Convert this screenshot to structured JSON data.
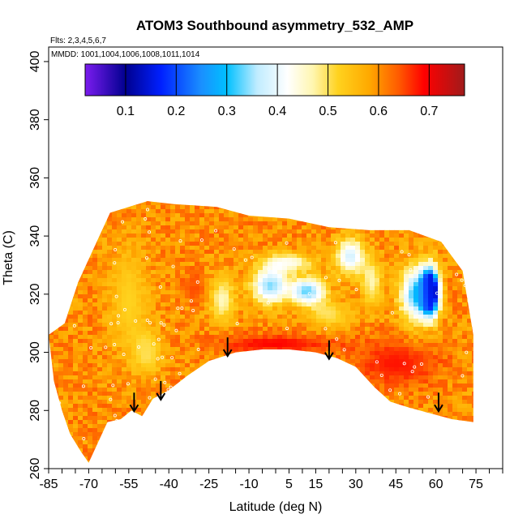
{
  "chart_data": {
    "type": "heatmap",
    "title": "ATOM3 Southbound asymmetry_532_AMP",
    "info_flights": "Flts: 2,3,4,5,6,7",
    "info_dates": "MMDD: 1001,1004,1006,1008,1011,1014",
    "xlabel": "Latitude (deg N)",
    "ylabel": "Theta (C)",
    "xlim": [
      -85,
      85
    ],
    "ylim": [
      260,
      405
    ],
    "x_ticks": [
      -85,
      -70,
      -55,
      -40,
      -25,
      -10,
      5,
      15,
      30,
      45,
      60,
      75
    ],
    "x_minor_step": 5,
    "y_ticks": [
      260,
      280,
      300,
      320,
      340,
      360,
      380,
      400
    ],
    "colorbar": {
      "range": [
        0.02,
        0.77
      ],
      "ticks": [
        0.1,
        0.2,
        0.3,
        0.4,
        0.5,
        0.6,
        0.7
      ],
      "stops": [
        {
          "v": 0.02,
          "color": "#7b1cef"
        },
        {
          "v": 0.1,
          "color": "#00008f"
        },
        {
          "v": 0.17,
          "color": "#0020ff"
        },
        {
          "v": 0.25,
          "color": "#1a90ff"
        },
        {
          "v": 0.3,
          "color": "#00c0ff"
        },
        {
          "v": 0.36,
          "color": "#c0ecff"
        },
        {
          "v": 0.42,
          "color": "#ffffff"
        },
        {
          "v": 0.47,
          "color": "#fff6b0"
        },
        {
          "v": 0.52,
          "color": "#ffd21e"
        },
        {
          "v": 0.58,
          "color": "#ffaa00"
        },
        {
          "v": 0.64,
          "color": "#ff5a00"
        },
        {
          "v": 0.69,
          "color": "#ff0000"
        },
        {
          "v": 0.77,
          "color": "#a01b1b"
        }
      ]
    },
    "tropopause_arrows": [
      {
        "lat": -53,
        "theta": 280
      },
      {
        "lat": -43,
        "theta": 284
      },
      {
        "lat": -18,
        "theta": 299
      },
      {
        "lat": 20,
        "theta": 298
      },
      {
        "lat": 61,
        "theta": 280
      }
    ],
    "boundary_top": [
      [
        -85,
        306
      ],
      [
        -79,
        310
      ],
      [
        -74,
        324
      ],
      [
        -68,
        336
      ],
      [
        -62,
        348
      ],
      [
        -55,
        350
      ],
      [
        -48,
        352
      ],
      [
        -38,
        351
      ],
      [
        -22,
        350
      ],
      [
        -10,
        347
      ],
      [
        5,
        346
      ],
      [
        20,
        343
      ],
      [
        35,
        342
      ],
      [
        50,
        342
      ],
      [
        62,
        338
      ],
      [
        70,
        328
      ],
      [
        74,
        306
      ]
    ],
    "boundary_bottom": [
      [
        -85,
        306
      ],
      [
        -83,
        290
      ],
      [
        -80,
        280
      ],
      [
        -77,
        272
      ],
      [
        -73,
        266
      ],
      [
        -70,
        262
      ],
      [
        -67,
        268
      ],
      [
        -63,
        276
      ],
      [
        -58,
        277
      ],
      [
        -54,
        280
      ],
      [
        -50,
        278
      ],
      [
        -46,
        284
      ],
      [
        -40,
        287
      ],
      [
        -33,
        292
      ],
      [
        -25,
        297
      ],
      [
        -15,
        300
      ],
      [
        -5,
        301
      ],
      [
        5,
        301
      ],
      [
        15,
        300
      ],
      [
        23,
        298
      ],
      [
        30,
        295
      ],
      [
        37,
        288
      ],
      [
        43,
        283
      ],
      [
        50,
        281
      ],
      [
        58,
        279
      ],
      [
        66,
        277
      ],
      [
        74,
        276
      ]
    ],
    "features": [
      {
        "lat": -55,
        "theta": 318,
        "rx": 9,
        "ry": 22,
        "value": 0.52
      },
      {
        "lat": -48,
        "theta": 300,
        "rx": 7,
        "ry": 10,
        "value": 0.5
      },
      {
        "lat": -20,
        "theta": 318,
        "rx": 6,
        "ry": 10,
        "value": 0.46
      },
      {
        "lat": -2,
        "theta": 323,
        "rx": 9,
        "ry": 8,
        "value": 0.34
      },
      {
        "lat": 12,
        "theta": 321,
        "rx": 8,
        "ry": 6,
        "value": 0.33
      },
      {
        "lat": 5,
        "theta": 331,
        "rx": 12,
        "ry": 4,
        "value": 0.44
      },
      {
        "lat": 28,
        "theta": 333,
        "rx": 7,
        "ry": 8,
        "value": 0.38
      },
      {
        "lat": 20,
        "theta": 313,
        "rx": 10,
        "ry": 6,
        "value": 0.5
      },
      {
        "lat": 36,
        "theta": 324,
        "rx": 5,
        "ry": 10,
        "value": 0.47
      },
      {
        "lat": 58,
        "theta": 321,
        "rx": 4,
        "ry": 10,
        "value": 0.08
      },
      {
        "lat": 53,
        "theta": 320,
        "rx": 8,
        "ry": 12,
        "value": 0.3
      },
      {
        "lat": -30,
        "theta": 322,
        "rx": 6,
        "ry": 6,
        "value": 0.65
      },
      {
        "lat": 45,
        "theta": 296,
        "rx": 20,
        "ry": 10,
        "value": 0.68
      },
      {
        "lat": 0,
        "theta": 303,
        "rx": 30,
        "ry": 4,
        "value": 0.69
      }
    ],
    "background_value": 0.6
  },
  "colors": {
    "arrow": "#000000",
    "frame": "#000000",
    "sample_dots": "#ffffff"
  }
}
